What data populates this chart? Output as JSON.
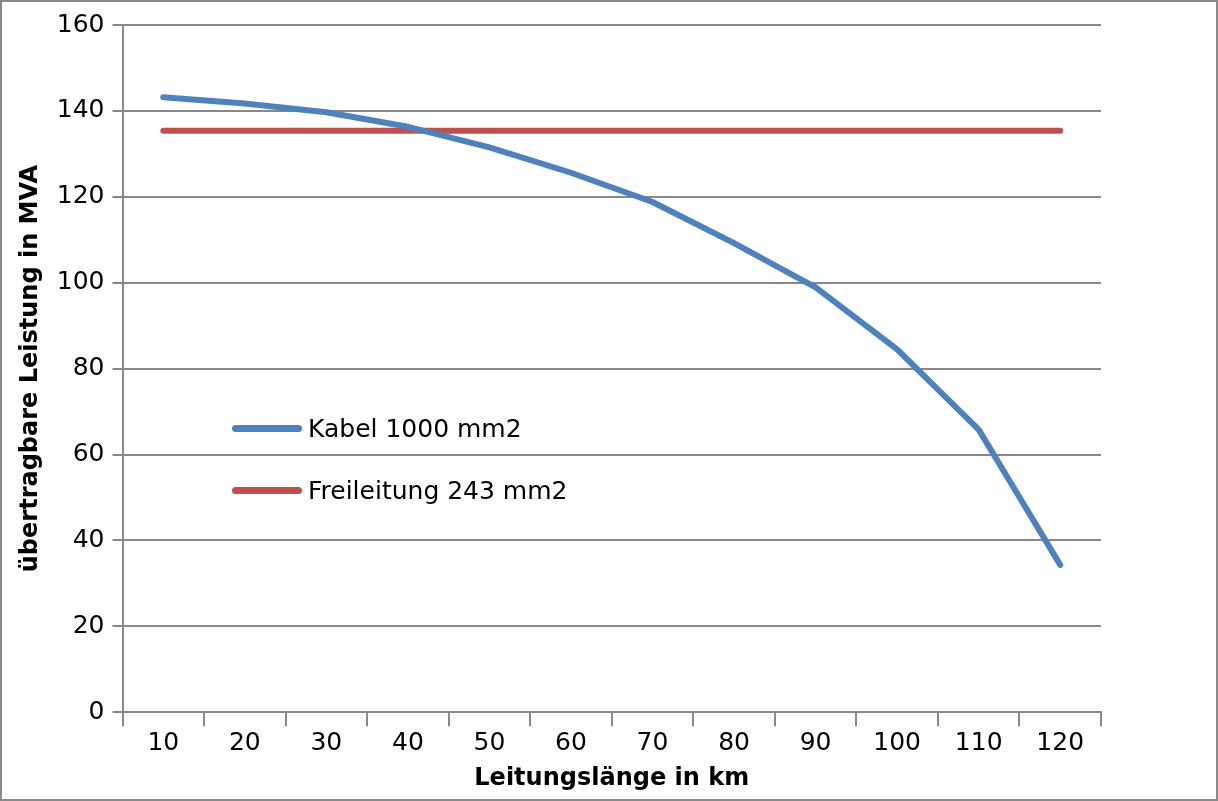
{
  "chart_data": {
    "type": "line",
    "xlabel": "Leitungslänge in km",
    "ylabel": "übertragbare Leistung in MVA",
    "categories": [
      "10",
      "20",
      "30",
      "40",
      "50",
      "60",
      "70",
      "80",
      "90",
      "100",
      "110",
      "120"
    ],
    "series": [
      {
        "name": "Kabel 1000 mm2",
        "color": "#4f81bd",
        "values": [
          143.2,
          141.7,
          139.7,
          136.3,
          131.5,
          125.6,
          118.8,
          109.2,
          98.9,
          84.5,
          65.8,
          34.3
        ]
      },
      {
        "name": "Freileitung 243 mm2",
        "color": "#c0504d",
        "values": [
          135.4,
          135.4,
          135.4,
          135.4,
          135.4,
          135.4,
          135.4,
          135.4,
          135.4,
          135.4,
          135.4,
          135.4
        ]
      }
    ],
    "ylim": [
      0,
      160
    ],
    "yticks": [
      0,
      20,
      40,
      60,
      80,
      100,
      120,
      140,
      160
    ],
    "grid": "y",
    "legend": "left",
    "marker": "none",
    "line_style": "solid"
  }
}
